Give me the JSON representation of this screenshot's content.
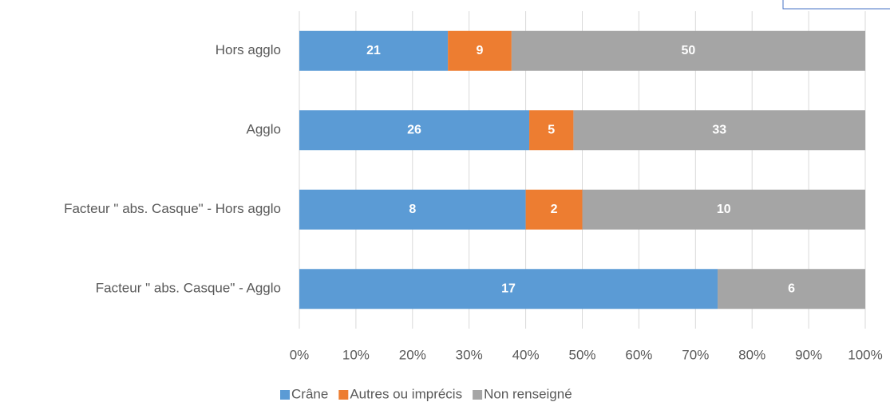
{
  "chart_data": {
    "type": "bar",
    "orientation": "horizontal",
    "stacking": "percent",
    "categories": [
      "Hors agglo",
      "Agglo",
      "Facteur \" abs. Casque\" - Hors agglo",
      "Facteur \" abs. Casque\" - Agglo"
    ],
    "series": [
      {
        "name": "Crâne",
        "color": "#5b9bd5",
        "values": [
          21,
          26,
          8,
          17
        ]
      },
      {
        "name": "Autres ou imprécis",
        "color": "#ed7d31",
        "values": [
          9,
          5,
          2,
          null
        ]
      },
      {
        "name": "Non renseigné",
        "color": "#a5a5a5",
        "values": [
          50,
          33,
          10,
          6
        ]
      }
    ],
    "xlim": [
      0,
      100
    ],
    "xticks": [
      {
        "value": 0,
        "label": "0%"
      },
      {
        "value": 10,
        "label": "10%"
      },
      {
        "value": 20,
        "label": "20%"
      },
      {
        "value": 30,
        "label": "30%"
      },
      {
        "value": 40,
        "label": "40%"
      },
      {
        "value": 50,
        "label": "50%"
      },
      {
        "value": 60,
        "label": "60%"
      },
      {
        "value": 70,
        "label": "70%"
      },
      {
        "value": 80,
        "label": "80%"
      },
      {
        "value": 90,
        "label": "90%"
      },
      {
        "value": 100,
        "label": "100%"
      }
    ],
    "grid": true,
    "legend": "bottom"
  }
}
